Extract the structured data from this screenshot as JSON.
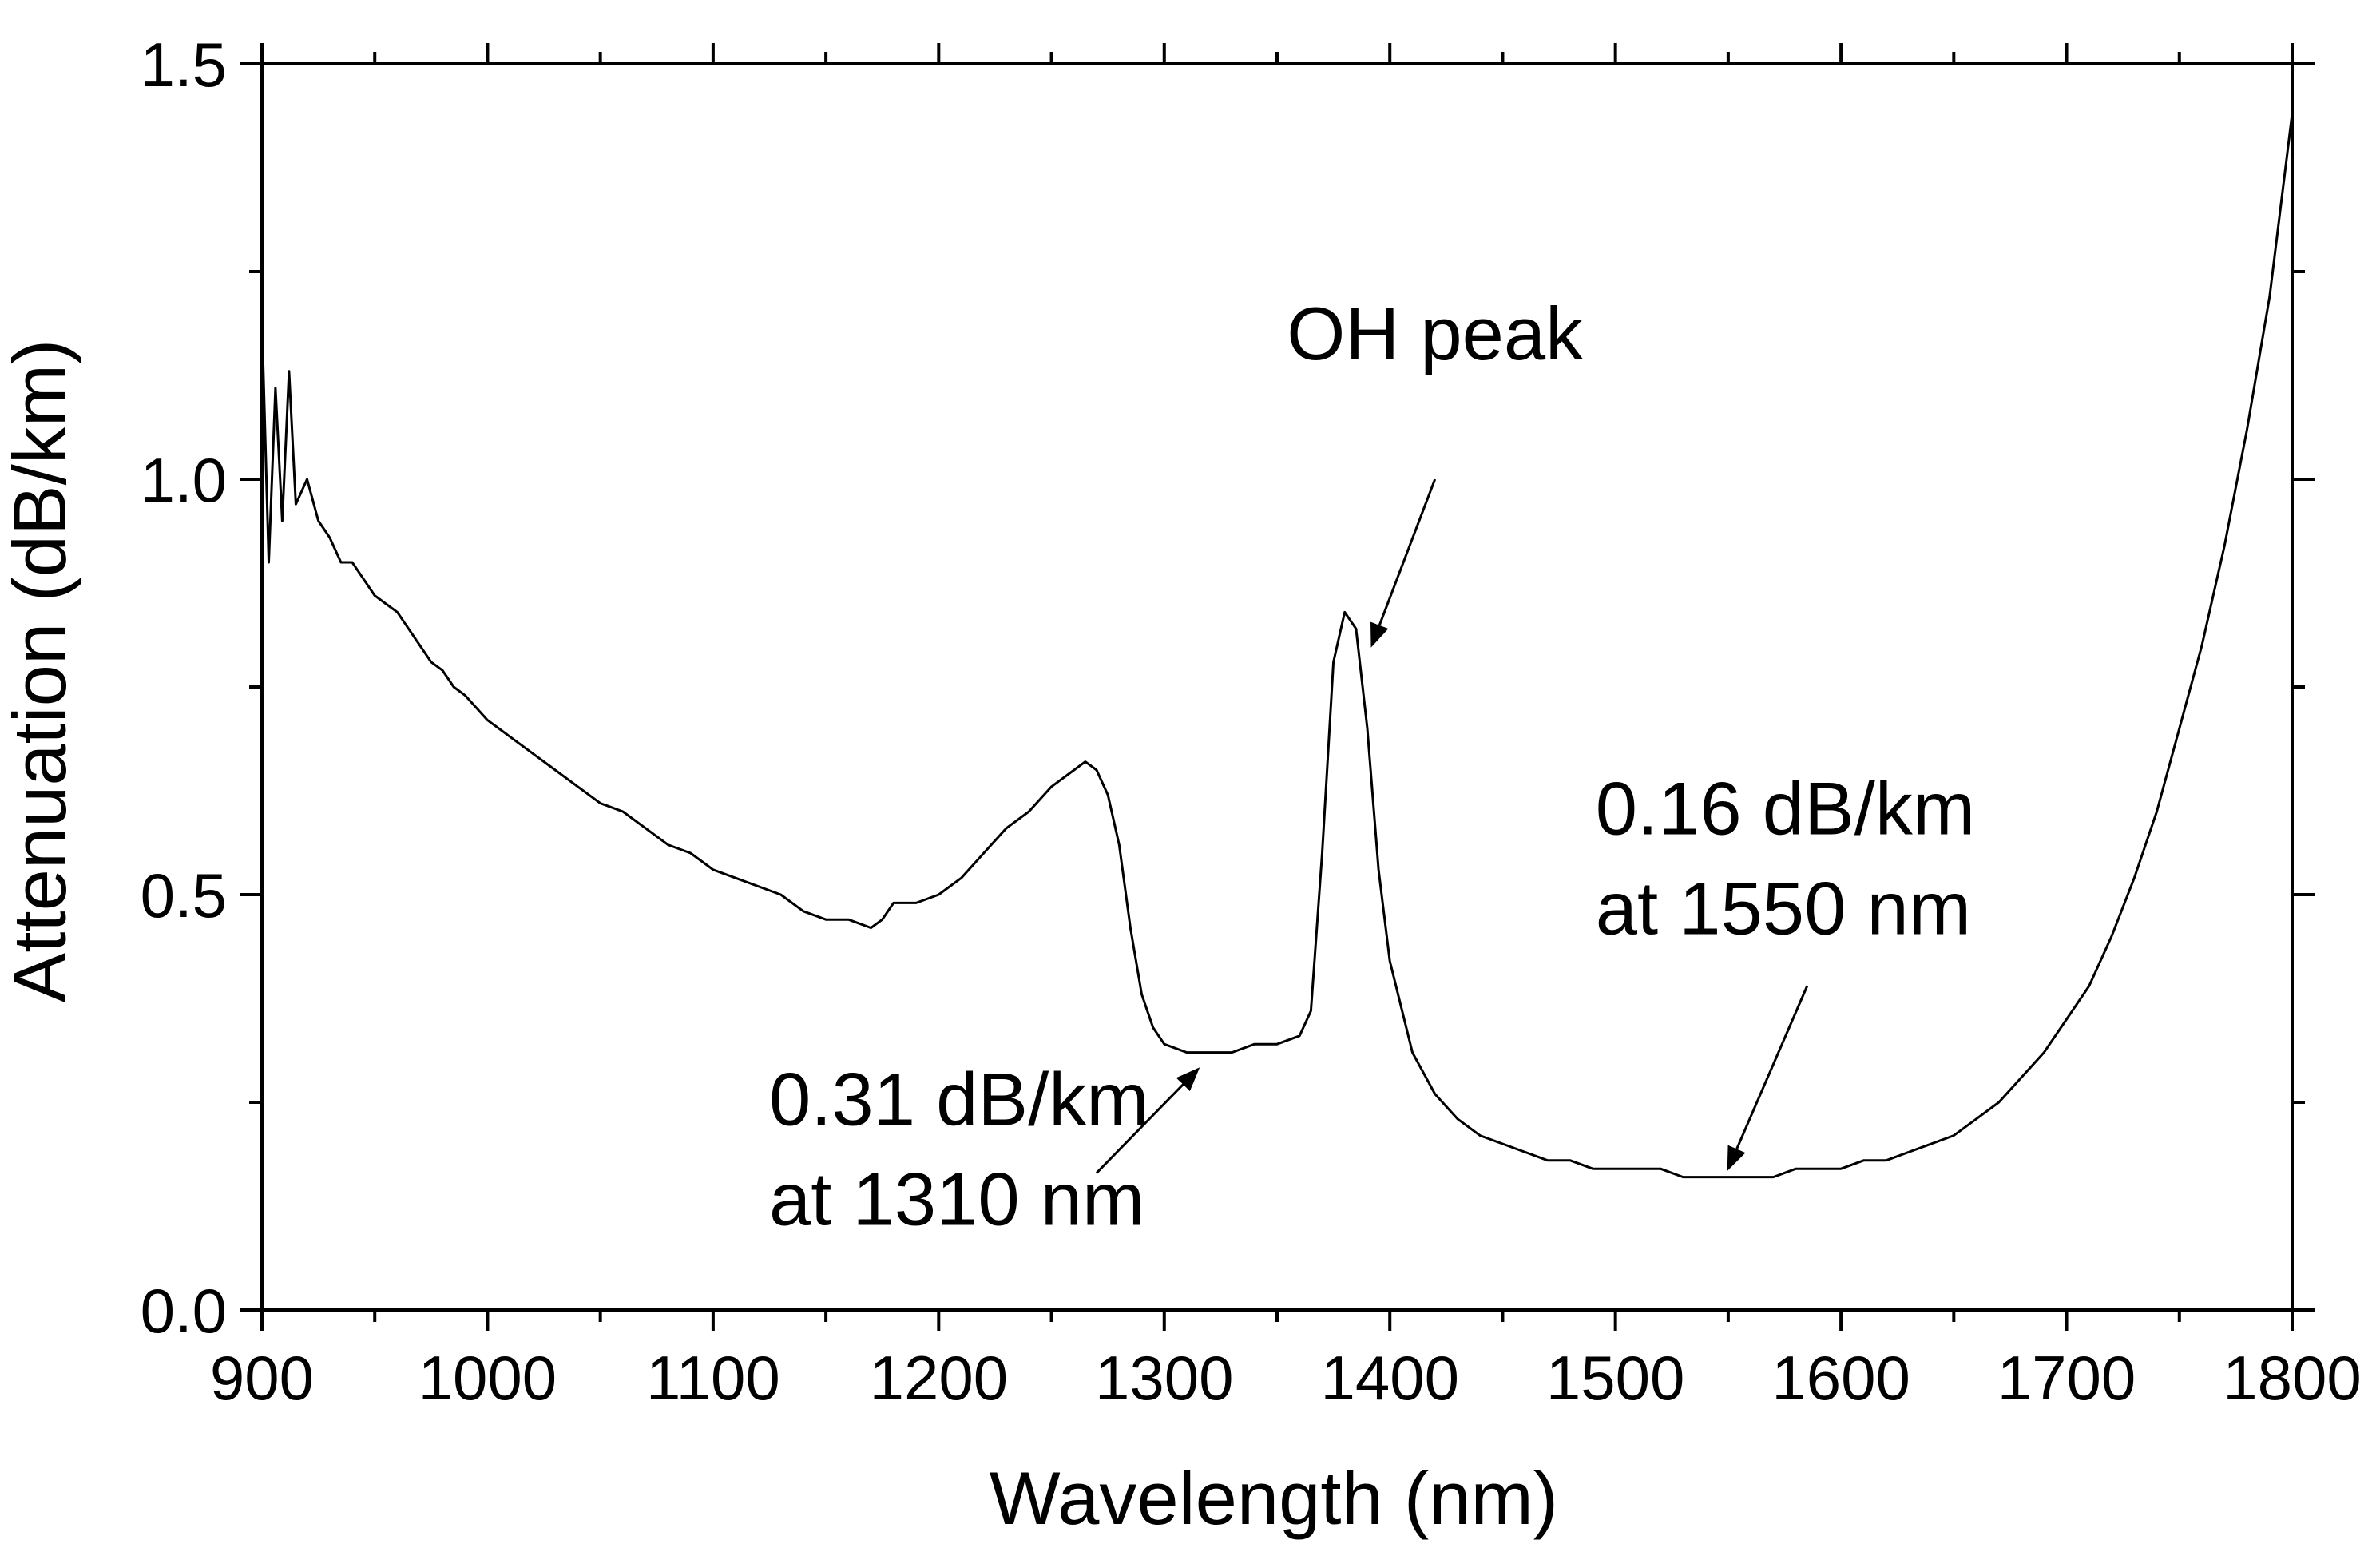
{
  "chart_data": {
    "type": "line",
    "title": "",
    "xlabel": "Wavelength (nm)",
    "ylabel": "Attenuation (dB/km)",
    "xlim": [
      900,
      1800
    ],
    "ylim": [
      0.0,
      1.5
    ],
    "grid": false,
    "x_ticks": [
      900,
      1000,
      1100,
      1200,
      1300,
      1400,
      1500,
      1600,
      1700,
      1800
    ],
    "x_tick_labels": [
      "900",
      "1000",
      "1100",
      "1200",
      "1300",
      "1400",
      "1500",
      "1600",
      "1700",
      "1800"
    ],
    "y_ticks": [
      0.0,
      0.5,
      1.0,
      1.5
    ],
    "y_tick_labels": [
      "0.0",
      "0.5",
      "1.0",
      "1.5"
    ],
    "series": [
      {
        "name": "Attenuation",
        "color": "#000000",
        "x": [
          900,
          903,
          906,
          909,
          912,
          915,
          920,
          925,
          930,
          935,
          940,
          945,
          950,
          955,
          960,
          965,
          970,
          975,
          980,
          985,
          990,
          1000,
          1010,
          1020,
          1030,
          1040,
          1050,
          1060,
          1070,
          1080,
          1090,
          1100,
          1110,
          1120,
          1130,
          1140,
          1150,
          1160,
          1170,
          1175,
          1180,
          1190,
          1200,
          1210,
          1220,
          1230,
          1240,
          1250,
          1260,
          1265,
          1270,
          1275,
          1280,
          1285,
          1290,
          1295,
          1300,
          1310,
          1320,
          1330,
          1340,
          1350,
          1360,
          1365,
          1370,
          1375,
          1380,
          1385,
          1390,
          1395,
          1400,
          1410,
          1420,
          1430,
          1440,
          1450,
          1460,
          1470,
          1480,
          1490,
          1500,
          1510,
          1520,
          1530,
          1540,
          1550,
          1560,
          1570,
          1580,
          1590,
          1600,
          1610,
          1620,
          1630,
          1640,
          1650,
          1660,
          1670,
          1680,
          1690,
          1700,
          1710,
          1720,
          1730,
          1740,
          1750,
          1760,
          1770,
          1780,
          1790,
          1800
        ],
        "y": [
          1.19,
          0.9,
          1.11,
          0.95,
          1.13,
          0.97,
          1.0,
          0.95,
          0.93,
          0.9,
          0.9,
          0.88,
          0.86,
          0.85,
          0.84,
          0.82,
          0.8,
          0.78,
          0.77,
          0.75,
          0.74,
          0.71,
          0.69,
          0.67,
          0.65,
          0.63,
          0.61,
          0.6,
          0.58,
          0.56,
          0.55,
          0.53,
          0.52,
          0.51,
          0.5,
          0.48,
          0.47,
          0.47,
          0.46,
          0.47,
          0.49,
          0.49,
          0.5,
          0.52,
          0.55,
          0.58,
          0.6,
          0.63,
          0.65,
          0.66,
          0.65,
          0.62,
          0.56,
          0.46,
          0.38,
          0.34,
          0.32,
          0.31,
          0.31,
          0.31,
          0.32,
          0.32,
          0.33,
          0.36,
          0.55,
          0.78,
          0.84,
          0.82,
          0.7,
          0.53,
          0.42,
          0.31,
          0.26,
          0.23,
          0.21,
          0.2,
          0.19,
          0.18,
          0.18,
          0.17,
          0.17,
          0.17,
          0.17,
          0.16,
          0.16,
          0.16,
          0.16,
          0.16,
          0.17,
          0.17,
          0.17,
          0.18,
          0.18,
          0.19,
          0.2,
          0.21,
          0.23,
          0.25,
          0.28,
          0.31,
          0.35,
          0.39,
          0.45,
          0.52,
          0.6,
          0.7,
          0.8,
          0.92,
          1.06,
          1.22,
          1.44
        ]
      }
    ],
    "annotations": [
      {
        "text_lines": [
          "OH peak"
        ],
        "target": {
          "x": 1392,
          "y": 0.8
        },
        "arrow_from": {
          "x": 1420,
          "y": 1.0
        }
      },
      {
        "text_lines": [
          "0.31 dB/km",
          "at 1310 nm"
        ],
        "target": {
          "x": 1315,
          "y": 0.29
        },
        "arrow_from": {
          "x": 1270,
          "y": 0.165
        }
      },
      {
        "text_lines": [
          "0.16 dB/km",
          "at 1550 nm"
        ],
        "target": {
          "x": 1550,
          "y": 0.17
        },
        "arrow_from": {
          "x": 1585,
          "y": 0.39
        }
      }
    ]
  }
}
